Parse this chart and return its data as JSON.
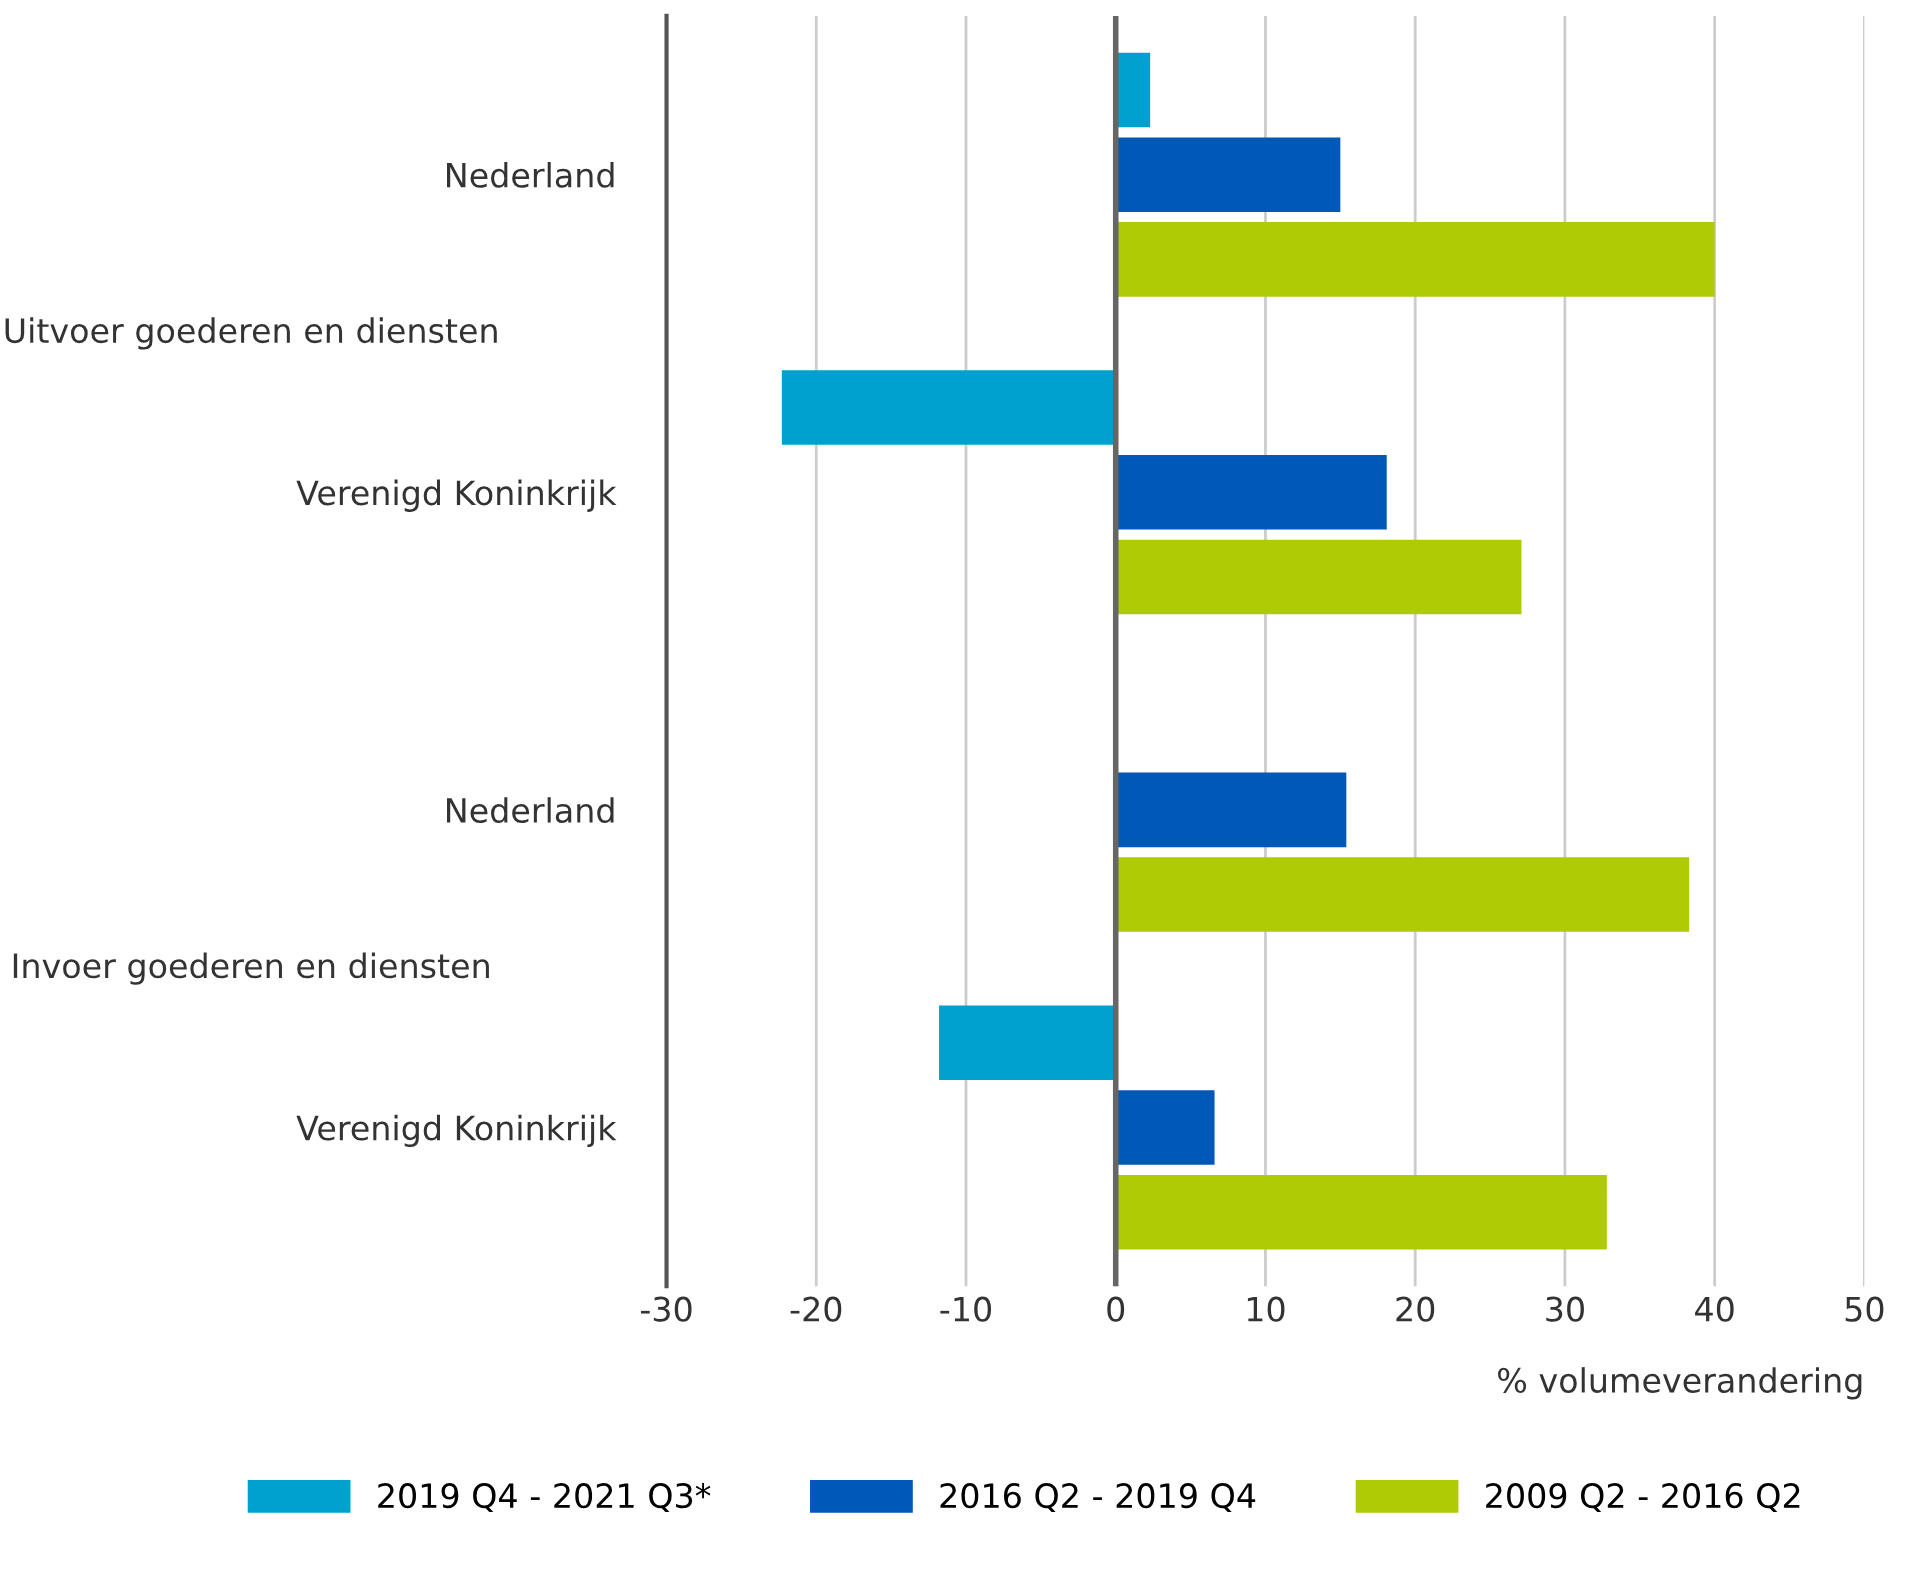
{
  "chart_data": {
    "type": "bar",
    "orientation": "horizontal",
    "categories": [
      "Nederland",
      "Verenigd Koninkrijk",
      "Nederland",
      "Verenigd Koninkrijk"
    ],
    "series": [
      {
        "name": "2019 Q4 - 2021 Q3*",
        "color": "#00a1cd",
        "values": [
          2.3,
          -22.3,
          null,
          -11.8
        ]
      },
      {
        "name": "2016 Q2 - 2019 Q4",
        "color": "#0058b8",
        "values": [
          15.0,
          18.1,
          15.4,
          6.6
        ]
      },
      {
        "name": "2009 Q2 - 2016 Q2",
        "color": "#afcb05",
        "values": [
          40.0,
          27.1,
          38.3,
          32.8
        ]
      }
    ],
    "annotations": [
      "Uitvoer goederen en diensten",
      "Invoer goederen en diensten"
    ],
    "xlabel": "% volumeverandering",
    "xlim": [
      -30,
      50
    ],
    "xticks": [
      -30,
      -20,
      -10,
      0,
      10,
      20,
      30,
      40,
      50
    ],
    "ref_lines": [
      {
        "axis": "x",
        "value": 0,
        "color": "#666666"
      }
    ],
    "grid": "x",
    "legend": "bottom"
  }
}
